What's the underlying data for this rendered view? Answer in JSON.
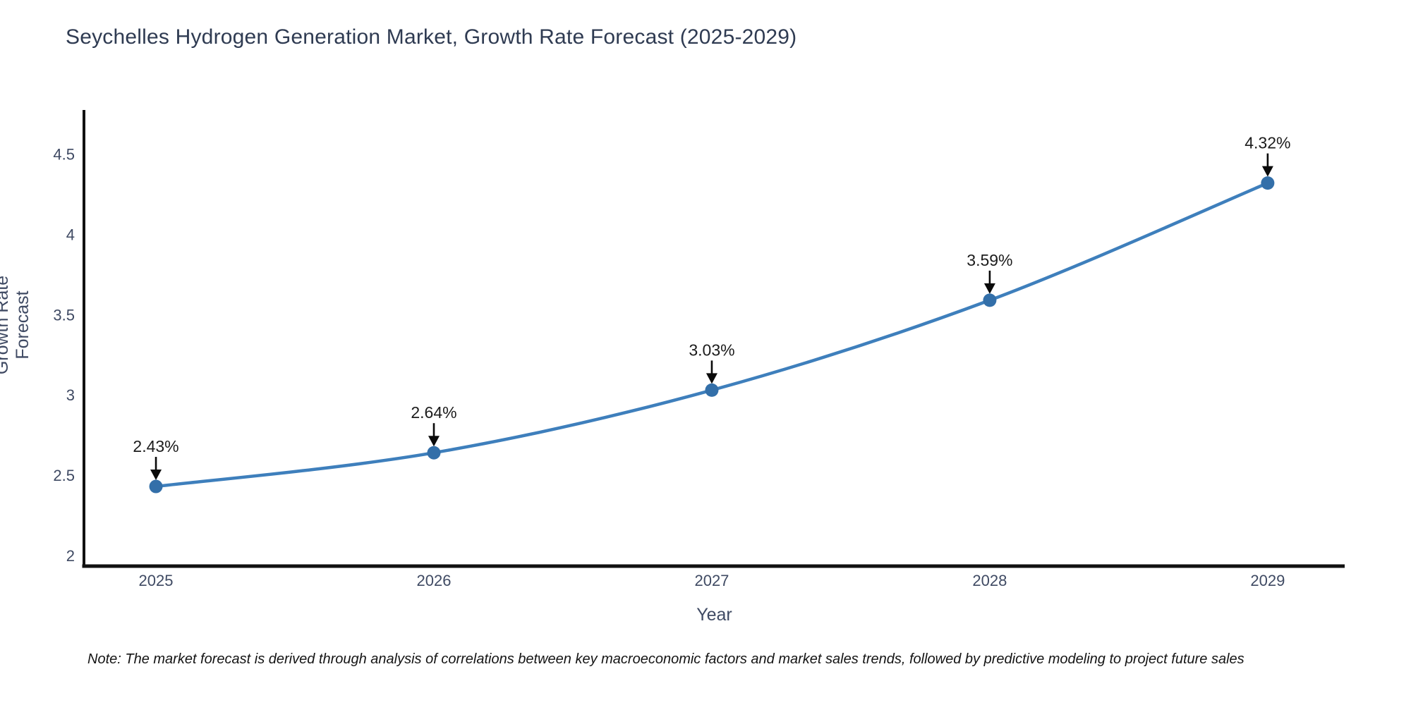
{
  "title": "Seychelles Hydrogen Generation Market, Growth Rate Forecast (2025-2029)",
  "note": "Note: The market forecast is derived through analysis of correlations between key macroeconomic factors and market sales trends, followed by predictive modeling to project future sales",
  "chart_data": {
    "type": "line",
    "title": "Seychelles Hydrogen Generation Market, Growth Rate Forecast (2025-2029)",
    "xlabel": "Year",
    "ylabel": "Growth Rate Forecast",
    "x": [
      2025,
      2026,
      2027,
      2028,
      2029
    ],
    "categories": [
      "2025",
      "2026",
      "2027",
      "2028",
      "2029"
    ],
    "values": [
      2.43,
      2.64,
      3.03,
      3.59,
      4.32
    ],
    "data_labels": [
      "2.43%",
      "2.64%",
      "3.03%",
      "3.59%",
      "4.32%"
    ],
    "yticks": [
      2,
      2.5,
      3,
      3.5,
      4,
      4.5
    ],
    "ytick_labels": [
      "2",
      "2.5",
      "3",
      "3.5",
      "4",
      "4.5"
    ],
    "xlim": [
      2024.741,
      2029.277
    ],
    "ylim": [
      1.934,
      4.775
    ],
    "grid": false,
    "legend": false,
    "smooth_line": true,
    "colors": {
      "line": "#3e7fbc",
      "marker": "#336fa9",
      "axis": "#111111",
      "tick_label": "#3f4a63",
      "annotation_text": "#1c1c1c",
      "annotation_arrow": "#0a0a0a",
      "title": "#2f3b52",
      "background": "#ffffff"
    }
  }
}
